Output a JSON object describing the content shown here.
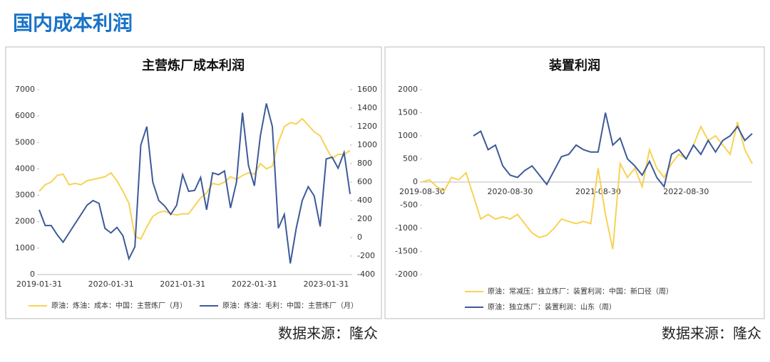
{
  "header": {
    "title": "国内成本利润"
  },
  "chart_data": [
    {
      "type": "line",
      "title": "主营炼厂成本利润",
      "source": "数据来源：隆众",
      "legend": "bottom",
      "categories": [
        "2019-01-31",
        null,
        null,
        null,
        null,
        null,
        null,
        null,
        null,
        null,
        null,
        null,
        "2020-01-31",
        null,
        null,
        null,
        null,
        null,
        null,
        null,
        null,
        null,
        null,
        null,
        "2021-01-31",
        null,
        null,
        null,
        null,
        null,
        null,
        null,
        null,
        null,
        null,
        null,
        "2022-01-31",
        null,
        null,
        null,
        null,
        null,
        null,
        null,
        null,
        null,
        null,
        null,
        "2023-01-31",
        null,
        null,
        null,
        null
      ],
      "ylim": [
        0,
        7000
      ],
      "yticks": [
        0,
        1000,
        2000,
        3000,
        4000,
        5000,
        6000,
        7000
      ],
      "y2lim": [
        -400,
        1600
      ],
      "y2ticks": [
        -400,
        -200,
        0,
        200,
        400,
        600,
        800,
        1000,
        1200,
        1400,
        1600
      ],
      "series": [
        {
          "name": "原油：炼油：成本：中国：主营炼厂（月）",
          "color": "#f7d255",
          "values": [
            3150,
            3400,
            3500,
            3750,
            3800,
            3400,
            3450,
            3400,
            3550,
            3600,
            3650,
            3700,
            3850,
            3550,
            3150,
            2700,
            1450,
            1350,
            1800,
            2200,
            2350,
            2400,
            2300,
            2250,
            2300,
            2300,
            2600,
            2900,
            3100,
            3450,
            3400,
            3500,
            3700,
            3600,
            3750,
            3850,
            3800,
            4200,
            4000,
            4100,
            5000,
            5600,
            5750,
            5700,
            5900,
            5650,
            5400,
            5250,
            4800,
            4400,
            4550,
            4550,
            4700
          ]
        },
        {
          "name": "原油：炼油：毛利：中国：主营炼厂（月）",
          "color": "#3d5a98",
          "axis": "y2",
          "values": [
            300,
            130,
            130,
            30,
            -50,
            50,
            150,
            250,
            350,
            400,
            370,
            100,
            50,
            110,
            20,
            -230,
            -100,
            1000,
            1200,
            600,
            400,
            340,
            250,
            350,
            680,
            500,
            510,
            650,
            300,
            700,
            680,
            720,
            320,
            600,
            1350,
            780,
            560,
            1100,
            1450,
            1200,
            100,
            250,
            -280,
            100,
            400,
            550,
            450,
            120,
            850,
            870,
            750,
            920,
            470
          ]
        }
      ]
    },
    {
      "type": "line",
      "title": "装置利润",
      "source": "数据来源：隆众",
      "legend": "bottom",
      "categories": [
        "2019-08-30",
        null,
        null,
        null,
        null,
        null,
        null,
        null,
        null,
        null,
        null,
        null,
        "2020-08-30",
        null,
        null,
        null,
        null,
        null,
        null,
        null,
        null,
        null,
        null,
        null,
        "2021-08-30",
        null,
        null,
        null,
        null,
        null,
        null,
        null,
        null,
        null,
        null,
        null,
        "2022-08-30",
        null,
        null,
        null,
        null,
        null,
        null,
        null,
        null,
        null
      ],
      "ylim": [
        -2000,
        2000
      ],
      "yticks": [
        -2000,
        -1500,
        -1000,
        -500,
        0,
        500,
        1000,
        1500,
        2000
      ],
      "series": [
        {
          "name": "原油：常减压：独立炼厂：装置利润：中国：新口径（周）",
          "color": "#f7d255",
          "values": [
            0,
            50,
            -100,
            -200,
            100,
            50,
            200,
            -300,
            -800,
            -700,
            -800,
            -750,
            -800,
            -700,
            -900,
            -1100,
            -1200,
            -1150,
            -1000,
            -800,
            -850,
            -900,
            -850,
            -900,
            300,
            -700,
            -1450,
            400,
            100,
            300,
            -100,
            700,
            300,
            100,
            400,
            600,
            500,
            800,
            1200,
            900,
            1000,
            800,
            600,
            1300,
            700,
            400
          ]
        },
        {
          "name": "原油：独立炼厂：装置利润：山东（周）",
          "color": "#3d5a98",
          "values": [
            null,
            null,
            null,
            null,
            null,
            null,
            null,
            1000,
            1100,
            700,
            800,
            350,
            150,
            100,
            250,
            350,
            150,
            -50,
            250,
            550,
            600,
            800,
            700,
            650,
            650,
            1500,
            800,
            950,
            500,
            350,
            150,
            450,
            100,
            -100,
            600,
            700,
            500,
            800,
            600,
            900,
            650,
            900,
            1000,
            1200,
            900,
            1050
          ]
        }
      ]
    }
  ]
}
